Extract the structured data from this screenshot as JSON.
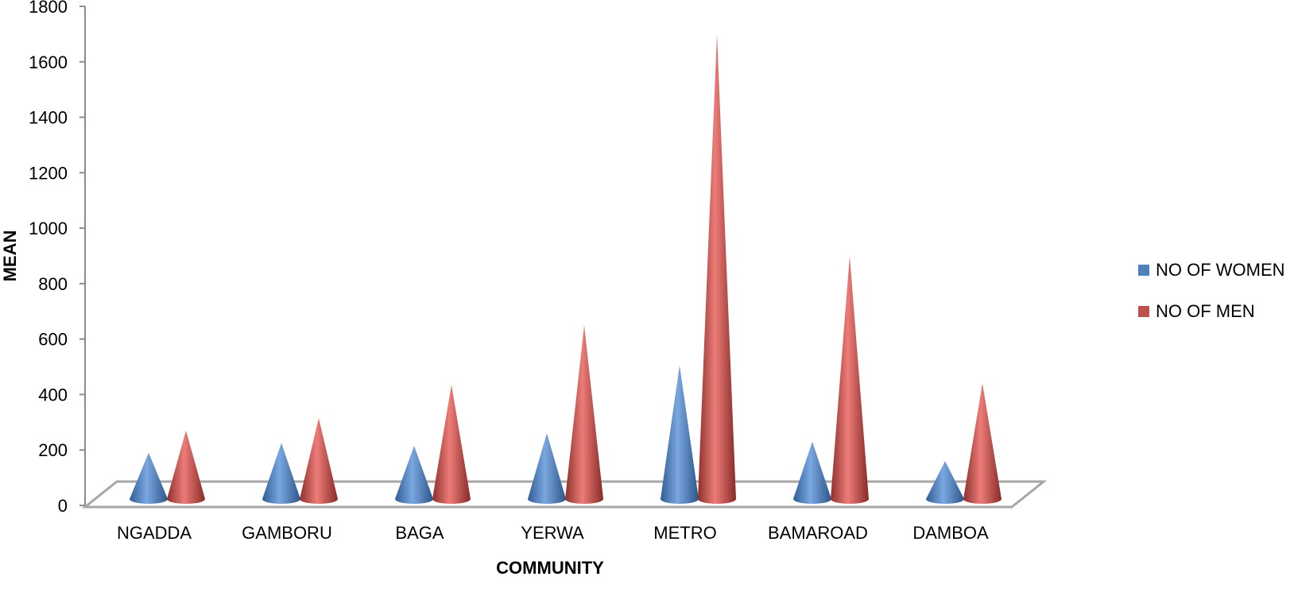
{
  "chart_data": {
    "type": "bar",
    "style": "3d-cone",
    "categories": [
      "NGADDA",
      "GAMBORU",
      "BAGA",
      "YERWA",
      "METRO",
      "BAMAROAD",
      "DAMBOA"
    ],
    "series": [
      {
        "name": "NO OF WOMEN",
        "color": "#4f81bd",
        "values": [
          190,
          225,
          215,
          260,
          505,
          230,
          160
        ]
      },
      {
        "name": "NO OF MEN",
        "color": "#c0504d",
        "values": [
          270,
          315,
          435,
          650,
          1700,
          900,
          440
        ]
      }
    ],
    "xlabel": "COMMUNITY",
    "ylabel": "MEAN",
    "ylim": [
      0,
      1800
    ],
    "yticks": [
      "0",
      "200",
      "400",
      "600",
      "800",
      "1000",
      "1200",
      "1400",
      "1600",
      "1800"
    ],
    "legend_position": "right",
    "grid": false
  }
}
